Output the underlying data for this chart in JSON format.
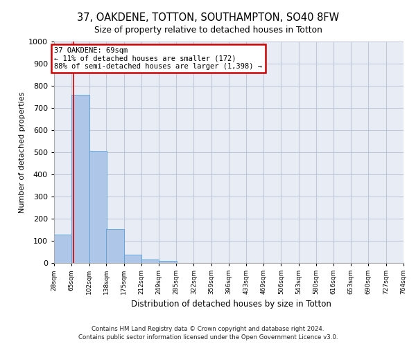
{
  "title_line1": "37, OAKDENE, TOTTON, SOUTHAMPTON, SO40 8FW",
  "title_line2": "Size of property relative to detached houses in Totton",
  "xlabel": "Distribution of detached houses by size in Totton",
  "ylabel": "Number of detached properties",
  "footer_line1": "Contains HM Land Registry data © Crown copyright and database right 2024.",
  "footer_line2": "Contains public sector information licensed under the Open Government Licence v3.0.",
  "bin_edges": [
    28,
    65,
    102,
    138,
    175,
    212,
    249,
    285,
    322,
    359,
    396,
    433,
    469,
    506,
    543,
    580,
    616,
    653,
    690,
    727,
    764
  ],
  "bar_heights": [
    128,
    760,
    505,
    152,
    38,
    15,
    10,
    0,
    0,
    0,
    0,
    0,
    0,
    0,
    0,
    0,
    0,
    0,
    0,
    0
  ],
  "bar_color": "#aec6e8",
  "bar_edgecolor": "#5a9fd4",
  "property_size": 69,
  "property_line_color": "#cc0000",
  "ylim_max": 1000,
  "yticks": [
    0,
    100,
    200,
    300,
    400,
    500,
    600,
    700,
    800,
    900,
    1000
  ],
  "grid_color": "#c0c8d8",
  "bg_color": "#e8edf5",
  "annotation_line1": "37 OAKDENE: 69sqm",
  "annotation_line2": "← 11% of detached houses are smaller (172)",
  "annotation_line3": "88% of semi-detached houses are larger (1,398) →",
  "annotation_box_color": "#cc0000"
}
